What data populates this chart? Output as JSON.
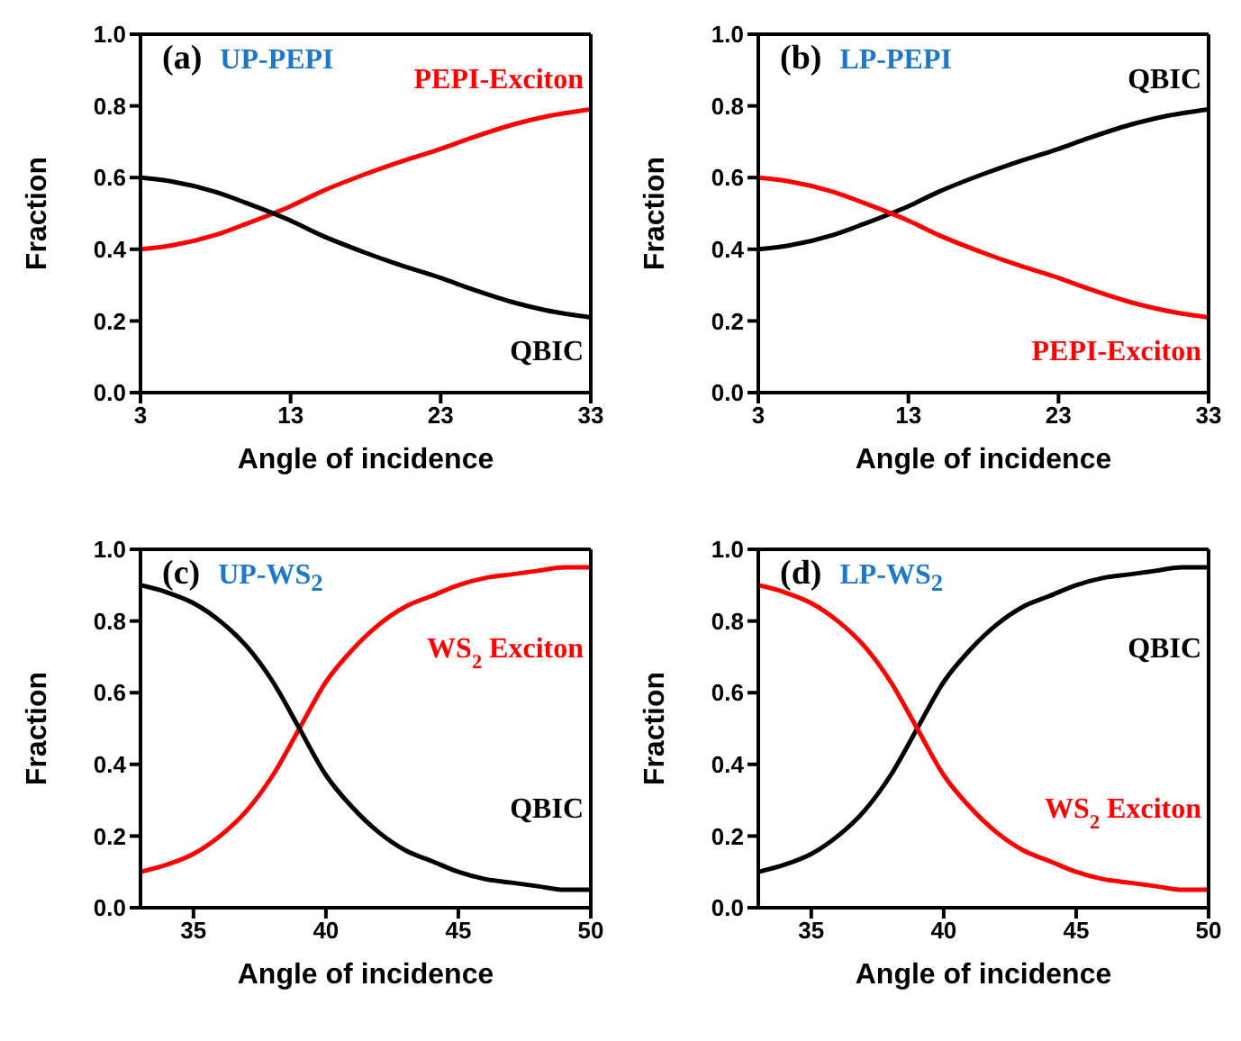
{
  "chart_data": [
    {
      "type": "line",
      "title": "UP-PEPI",
      "annotations": [
        "(a)"
      ],
      "xlabel": "Angle of incidence",
      "ylabel": "Fraction",
      "x": [
        3,
        5,
        8,
        10,
        13,
        15,
        18,
        20,
        23,
        25,
        28,
        30,
        33
      ],
      "xlim": [
        3,
        33
      ],
      "xticks": [
        3,
        13,
        23,
        33
      ],
      "ylim": [
        0,
        1
      ],
      "yticks": [
        {
          "value": 0,
          "label": "0.0"
        },
        {
          "value": 0.2,
          "label": "0.2"
        },
        {
          "value": 0.4,
          "label": "0.4"
        },
        {
          "value": 0.6,
          "label": "0.6"
        },
        {
          "value": 0.8,
          "label": "0.8"
        },
        {
          "value": 1,
          "label": "1.0"
        }
      ],
      "series": [
        {
          "name": "PEPI-Exciton",
          "color": "#ff0000",
          "values": [
            0.4,
            0.41,
            0.44,
            0.47,
            0.52,
            0.56,
            0.61,
            0.64,
            0.68,
            0.71,
            0.75,
            0.77,
            0.79
          ]
        },
        {
          "name": "QBIC",
          "color": "#000000",
          "values": [
            0.6,
            0.59,
            0.56,
            0.53,
            0.48,
            0.44,
            0.39,
            0.36,
            0.32,
            0.29,
            0.25,
            0.23,
            0.21
          ]
        }
      ]
    },
    {
      "type": "line",
      "title": "LP-PEPI",
      "annotations": [
        "(b)"
      ],
      "xlabel": "Angle of incidence",
      "ylabel": "Fraction",
      "x": [
        3,
        5,
        8,
        10,
        13,
        15,
        18,
        20,
        23,
        25,
        28,
        30,
        33
      ],
      "xlim": [
        3,
        33
      ],
      "xticks": [
        3,
        13,
        23,
        33
      ],
      "ylim": [
        0,
        1
      ],
      "yticks": [
        {
          "value": 0,
          "label": "0.0"
        },
        {
          "value": 0.2,
          "label": "0.2"
        },
        {
          "value": 0.4,
          "label": "0.4"
        },
        {
          "value": 0.6,
          "label": "0.6"
        },
        {
          "value": 0.8,
          "label": "0.8"
        },
        {
          "value": 1,
          "label": "1.0"
        }
      ],
      "series": [
        {
          "name": "QBIC",
          "color": "#000000",
          "values": [
            0.4,
            0.41,
            0.44,
            0.47,
            0.52,
            0.56,
            0.61,
            0.64,
            0.68,
            0.71,
            0.75,
            0.77,
            0.79
          ]
        },
        {
          "name": "PEPI-Exciton",
          "color": "#ff0000",
          "values": [
            0.6,
            0.59,
            0.56,
            0.53,
            0.48,
            0.44,
            0.39,
            0.36,
            0.32,
            0.29,
            0.25,
            0.23,
            0.21
          ]
        }
      ]
    },
    {
      "type": "line",
      "title": "UP-WS$_{2}$",
      "annotations": [
        "(c)"
      ],
      "xlabel": "Angle of incidence",
      "ylabel": "Fraction",
      "x": [
        33,
        34,
        35,
        36,
        37,
        38,
        39,
        40,
        41,
        42,
        43,
        44,
        45,
        46,
        47,
        48,
        49,
        50
      ],
      "xlim": [
        33,
        50
      ],
      "xticks": [
        35,
        40,
        45,
        50
      ],
      "ylim": [
        0,
        1
      ],
      "yticks": [
        {
          "value": 0,
          "label": "0.0"
        },
        {
          "value": 0.2,
          "label": "0.2"
        },
        {
          "value": 0.4,
          "label": "0.4"
        },
        {
          "value": 0.6,
          "label": "0.6"
        },
        {
          "value": 0.8,
          "label": "0.8"
        },
        {
          "value": 1,
          "label": "1.0"
        }
      ],
      "series": [
        {
          "name": "WS$_{2}$ Exciton",
          "color": "#ff0000",
          "values": [
            0.1,
            0.12,
            0.15,
            0.2,
            0.27,
            0.37,
            0.5,
            0.63,
            0.72,
            0.79,
            0.84,
            0.87,
            0.9,
            0.92,
            0.93,
            0.94,
            0.95,
            0.95
          ]
        },
        {
          "name": "QBIC",
          "color": "#000000",
          "values": [
            0.9,
            0.88,
            0.85,
            0.8,
            0.73,
            0.63,
            0.5,
            0.37,
            0.28,
            0.21,
            0.16,
            0.13,
            0.1,
            0.08,
            0.07,
            0.06,
            0.05,
            0.05
          ]
        }
      ]
    },
    {
      "type": "line",
      "title": "LP-WS$_{2}$",
      "annotations": [
        "(d)"
      ],
      "xlabel": "Angle of incidence",
      "ylabel": "Fraction",
      "x": [
        33,
        34,
        35,
        36,
        37,
        38,
        39,
        40,
        41,
        42,
        43,
        44,
        45,
        46,
        47,
        48,
        49,
        50
      ],
      "xlim": [
        33,
        50
      ],
      "xticks": [
        35,
        40,
        45,
        50
      ],
      "ylim": [
        0,
        1
      ],
      "yticks": [
        {
          "value": 0,
          "label": "0.0"
        },
        {
          "value": 0.2,
          "label": "0.2"
        },
        {
          "value": 0.4,
          "label": "0.4"
        },
        {
          "value": 0.6,
          "label": "0.6"
        },
        {
          "value": 0.8,
          "label": "0.8"
        },
        {
          "value": 1,
          "label": "1.0"
        }
      ],
      "series": [
        {
          "name": "QBIC",
          "color": "#000000",
          "values": [
            0.1,
            0.12,
            0.15,
            0.2,
            0.27,
            0.37,
            0.5,
            0.63,
            0.72,
            0.79,
            0.84,
            0.87,
            0.9,
            0.92,
            0.93,
            0.94,
            0.95,
            0.95
          ]
        },
        {
          "name": "WS$_{2}$ Exciton",
          "color": "#ff0000",
          "values": [
            0.9,
            0.88,
            0.85,
            0.8,
            0.73,
            0.63,
            0.5,
            0.37,
            0.28,
            0.21,
            0.16,
            0.13,
            0.1,
            0.08,
            0.07,
            0.06,
            0.05,
            0.05
          ]
        }
      ]
    }
  ]
}
